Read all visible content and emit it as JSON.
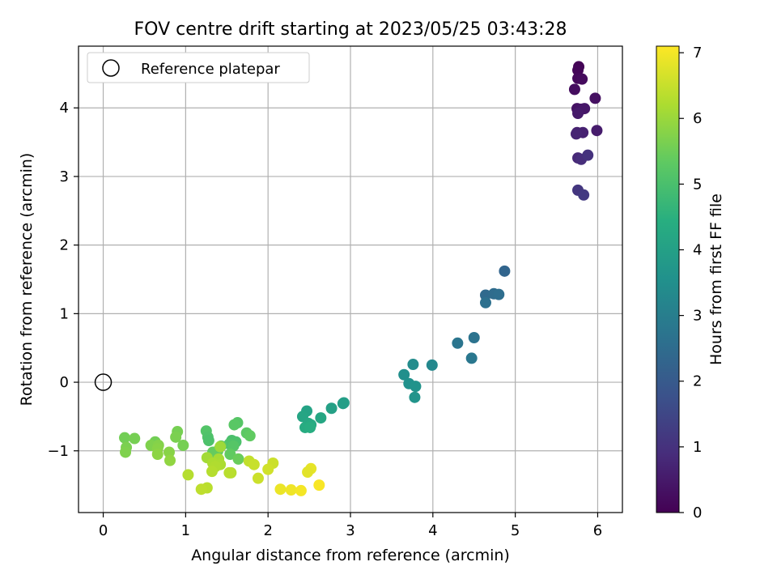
{
  "chart_data": {
    "type": "scatter",
    "title": "FOV centre drift starting at 2023/05/25 03:43:28",
    "xlabel": "Angular distance from reference (arcmin)",
    "ylabel": "Rotation from reference (arcmin)",
    "xlim": [
      -0.3,
      6.3
    ],
    "ylim": [
      -1.9,
      4.9
    ],
    "xticks": [
      0,
      1,
      2,
      3,
      4,
      5,
      6
    ],
    "yticks": [
      -1,
      0,
      1,
      2,
      3,
      4
    ],
    "grid": true,
    "legend": {
      "position": "top-left",
      "entries": [
        "Reference platepar"
      ]
    },
    "reference_point": {
      "x": 0,
      "y": 0
    },
    "colorbar": {
      "label": "Hours from first FF file",
      "range": [
        0,
        7.1
      ],
      "ticks": [
        0,
        1,
        2,
        3,
        4,
        5,
        6,
        7
      ],
      "colormap": "viridis"
    },
    "points": [
      {
        "x": 5.77,
        "y": 4.6,
        "c": 0.05
      },
      {
        "x": 5.76,
        "y": 4.55,
        "c": 0.1
      },
      {
        "x": 5.76,
        "y": 4.43,
        "c": 0.15
      },
      {
        "x": 5.81,
        "y": 4.42,
        "c": 0.2
      },
      {
        "x": 5.72,
        "y": 4.27,
        "c": 0.25
      },
      {
        "x": 5.97,
        "y": 4.14,
        "c": 0.3
      },
      {
        "x": 5.75,
        "y": 3.99,
        "c": 0.35
      },
      {
        "x": 5.8,
        "y": 3.98,
        "c": 0.4
      },
      {
        "x": 5.84,
        "y": 3.99,
        "c": 0.45
      },
      {
        "x": 5.76,
        "y": 3.92,
        "c": 0.5
      },
      {
        "x": 5.99,
        "y": 3.67,
        "c": 0.55
      },
      {
        "x": 5.75,
        "y": 3.64,
        "c": 0.6
      },
      {
        "x": 5.82,
        "y": 3.64,
        "c": 0.65
      },
      {
        "x": 5.74,
        "y": 3.62,
        "c": 0.7
      },
      {
        "x": 5.76,
        "y": 3.27,
        "c": 0.8
      },
      {
        "x": 5.8,
        "y": 3.25,
        "c": 0.9
      },
      {
        "x": 5.88,
        "y": 3.31,
        "c": 1.0
      },
      {
        "x": 5.76,
        "y": 2.8,
        "c": 1.1
      },
      {
        "x": 5.83,
        "y": 2.73,
        "c": 1.2
      },
      {
        "x": 4.87,
        "y": 1.62,
        "c": 2.3
      },
      {
        "x": 4.64,
        "y": 1.27,
        "c": 2.4
      },
      {
        "x": 4.74,
        "y": 1.29,
        "c": 2.5
      },
      {
        "x": 4.8,
        "y": 1.28,
        "c": 2.55
      },
      {
        "x": 4.64,
        "y": 1.16,
        "c": 2.6
      },
      {
        "x": 4.5,
        "y": 0.65,
        "c": 2.7
      },
      {
        "x": 4.3,
        "y": 0.57,
        "c": 2.75
      },
      {
        "x": 4.47,
        "y": 0.35,
        "c": 2.8
      },
      {
        "x": 3.76,
        "y": 0.26,
        "c": 3.4
      },
      {
        "x": 3.99,
        "y": 0.25,
        "c": 3.3
      },
      {
        "x": 3.65,
        "y": 0.11,
        "c": 3.5
      },
      {
        "x": 3.71,
        "y": -0.02,
        "c": 3.55
      },
      {
        "x": 3.79,
        "y": -0.06,
        "c": 3.6
      },
      {
        "x": 3.78,
        "y": -0.22,
        "c": 3.65
      },
      {
        "x": 2.91,
        "y": -0.31,
        "c": 3.9
      },
      {
        "x": 2.92,
        "y": -0.3,
        "c": 3.95
      },
      {
        "x": 2.77,
        "y": -0.38,
        "c": 4.0
      },
      {
        "x": 2.47,
        "y": -0.42,
        "c": 4.1
      },
      {
        "x": 2.42,
        "y": -0.5,
        "c": 4.15
      },
      {
        "x": 2.64,
        "y": -0.52,
        "c": 4.2
      },
      {
        "x": 2.49,
        "y": -0.6,
        "c": 4.25
      },
      {
        "x": 2.52,
        "y": -0.62,
        "c": 4.3
      },
      {
        "x": 2.45,
        "y": -0.66,
        "c": 4.35
      },
      {
        "x": 2.51,
        "y": -0.66,
        "c": 4.4
      },
      {
        "x": 1.63,
        "y": -0.59,
        "c": 5.2
      },
      {
        "x": 1.59,
        "y": -0.62,
        "c": 5.25
      },
      {
        "x": 1.74,
        "y": -0.74,
        "c": 5.3
      },
      {
        "x": 1.78,
        "y": -0.78,
        "c": 5.35
      },
      {
        "x": 1.25,
        "y": -0.71,
        "c": 5.15
      },
      {
        "x": 1.27,
        "y": -0.8,
        "c": 5.1
      },
      {
        "x": 1.28,
        "y": -0.85,
        "c": 5.05
      },
      {
        "x": 1.56,
        "y": -0.85,
        "c": 5.0
      },
      {
        "x": 1.61,
        "y": -0.87,
        "c": 5.05
      },
      {
        "x": 1.53,
        "y": -0.9,
        "c": 5.1
      },
      {
        "x": 1.58,
        "y": -0.93,
        "c": 5.2
      },
      {
        "x": 1.43,
        "y": -0.93,
        "c": 5.3
      },
      {
        "x": 1.54,
        "y": -1.05,
        "c": 5.35
      },
      {
        "x": 1.39,
        "y": -1.0,
        "c": 5.4
      },
      {
        "x": 1.33,
        "y": -1.02,
        "c": 5.4
      },
      {
        "x": 1.64,
        "y": -1.12,
        "c": 5.45
      },
      {
        "x": 0.26,
        "y": -0.81,
        "c": 5.55
      },
      {
        "x": 0.38,
        "y": -0.82,
        "c": 5.6
      },
      {
        "x": 0.28,
        "y": -0.95,
        "c": 5.65
      },
      {
        "x": 0.27,
        "y": -1.02,
        "c": 5.7
      },
      {
        "x": 0.9,
        "y": -0.72,
        "c": 5.6
      },
      {
        "x": 0.88,
        "y": -0.8,
        "c": 5.65
      },
      {
        "x": 0.63,
        "y": -0.87,
        "c": 5.55
      },
      {
        "x": 0.97,
        "y": -0.92,
        "c": 5.6
      },
      {
        "x": 0.58,
        "y": -0.92,
        "c": 5.7
      },
      {
        "x": 0.67,
        "y": -0.92,
        "c": 5.75
      },
      {
        "x": 0.66,
        "y": -0.97,
        "c": 5.8
      },
      {
        "x": 0.8,
        "y": -1.02,
        "c": 5.8
      },
      {
        "x": 0.66,
        "y": -1.05,
        "c": 5.85
      },
      {
        "x": 0.81,
        "y": -1.14,
        "c": 5.9
      },
      {
        "x": 1.42,
        "y": -0.94,
        "c": 6.05
      },
      {
        "x": 1.26,
        "y": -1.1,
        "c": 6.1
      },
      {
        "x": 1.4,
        "y": -1.12,
        "c": 6.15
      },
      {
        "x": 1.33,
        "y": -1.18,
        "c": 6.2
      },
      {
        "x": 1.42,
        "y": -1.2,
        "c": 6.2
      },
      {
        "x": 1.36,
        "y": -1.23,
        "c": 6.25
      },
      {
        "x": 1.32,
        "y": -1.3,
        "c": 6.3
      },
      {
        "x": 1.55,
        "y": -1.32,
        "c": 6.3
      },
      {
        "x": 1.53,
        "y": -1.32,
        "c": 6.35
      },
      {
        "x": 1.03,
        "y": -1.35,
        "c": 6.3
      },
      {
        "x": 1.26,
        "y": -1.54,
        "c": 6.35
      },
      {
        "x": 1.19,
        "y": -1.56,
        "c": 6.4
      },
      {
        "x": 1.77,
        "y": -1.15,
        "c": 6.45
      },
      {
        "x": 1.83,
        "y": -1.2,
        "c": 6.5
      },
      {
        "x": 2.06,
        "y": -1.18,
        "c": 6.55
      },
      {
        "x": 2.0,
        "y": -1.27,
        "c": 6.6
      },
      {
        "x": 1.88,
        "y": -1.4,
        "c": 6.55
      },
      {
        "x": 2.52,
        "y": -1.26,
        "c": 6.85
      },
      {
        "x": 2.48,
        "y": -1.31,
        "c": 6.8
      },
      {
        "x": 2.15,
        "y": -1.56,
        "c": 6.9
      },
      {
        "x": 2.28,
        "y": -1.57,
        "c": 6.95
      },
      {
        "x": 2.4,
        "y": -1.58,
        "c": 7.0
      },
      {
        "x": 2.62,
        "y": -1.5,
        "c": 7.05
      }
    ]
  }
}
